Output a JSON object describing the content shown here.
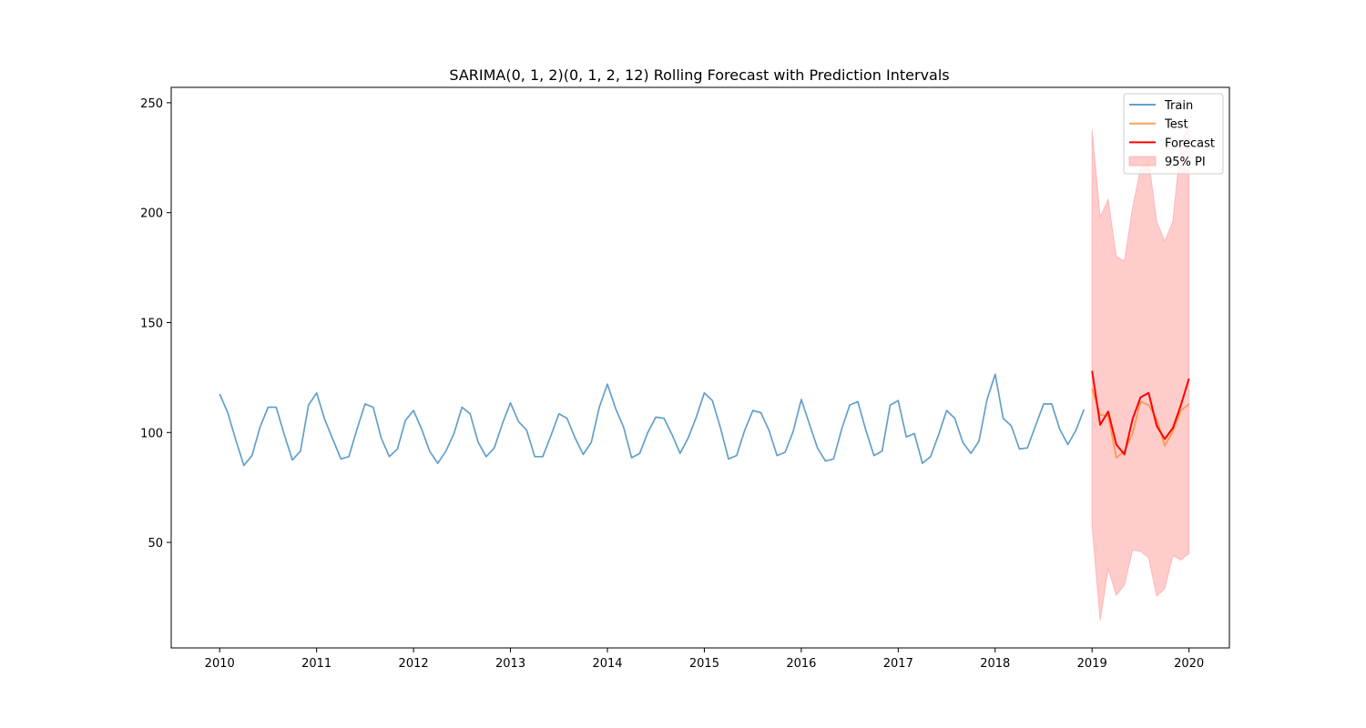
{
  "chart_data": {
    "type": "line",
    "title": "SARIMA(0, 1, 2)(0, 1, 2, 12) Rolling Forecast with Prediction Intervals",
    "xlabel": "",
    "ylabel": "",
    "x_ticks": [
      "2010",
      "2011",
      "2012",
      "2013",
      "2014",
      "2015",
      "2016",
      "2017",
      "2018",
      "2019",
      "2020"
    ],
    "y_ticks": [
      50,
      100,
      150,
      200,
      250
    ],
    "xlim": [
      "2009-07-01",
      "2020-06-01"
    ],
    "ylim": [
      2,
      257
    ],
    "grid": false,
    "legend": "top-right",
    "series": [
      {
        "name": "Train",
        "color": "#1f77b4",
        "start": "2010-01",
        "values": [
          117.5,
          109,
          96.5,
          85,
          89.5,
          102.5,
          111.5,
          111.5,
          99,
          87.5,
          91.5,
          112.5,
          118,
          106,
          97,
          88,
          89,
          101.5,
          113,
          111.5,
          97.5,
          89,
          92.5,
          105.5,
          110,
          101.5,
          91.5,
          86,
          91.5,
          99.5,
          111.5,
          108.5,
          95.5,
          89,
          93,
          104,
          113.5,
          105,
          101,
          89,
          89,
          98.5,
          108.5,
          106.5,
          97.5,
          90,
          95.5,
          111.5,
          122,
          111,
          102.5,
          88.5,
          90.5,
          100,
          107,
          106.5,
          99,
          90.5,
          97.5,
          107,
          118,
          114.5,
          102,
          88,
          89.5,
          101,
          110,
          109,
          101,
          89.5,
          91,
          100.5,
          115,
          104,
          93,
          87,
          88,
          101.5,
          112.5,
          114,
          101,
          89.5,
          91.5,
          112.5,
          114.5,
          98,
          99.5,
          86,
          89,
          99,
          110,
          106.5,
          95.5,
          90.5,
          96,
          115,
          126.5,
          106.5,
          103,
          92.5,
          93,
          103,
          113,
          113,
          101.5,
          94.5,
          101,
          110.5
        ]
      },
      {
        "name": "Test",
        "color": "#ff7f0e",
        "start": "2019-01",
        "values": [
          120,
          108,
          107.5,
          88.5,
          91.5,
          99.5,
          114,
          112.5,
          106,
          94,
          100.5,
          110,
          113
        ]
      },
      {
        "name": "Forecast",
        "color": "#ff0000",
        "start": "2019-01",
        "values": [
          128,
          103.5,
          109.5,
          94.5,
          90,
          106,
          116,
          118,
          103,
          97,
          102,
          112.5,
          124.5
        ]
      },
      {
        "name": "95% PI",
        "color": "#ff9999",
        "start": "2019-01",
        "lower": [
          57.5,
          14.5,
          38,
          26,
          30.5,
          46.5,
          46,
          43,
          25.5,
          29,
          44,
          42,
          45
        ],
        "upper": [
          237.5,
          198,
          206,
          180,
          178,
          202,
          220,
          224,
          196,
          187,
          196,
          232,
          240
        ]
      }
    ]
  }
}
